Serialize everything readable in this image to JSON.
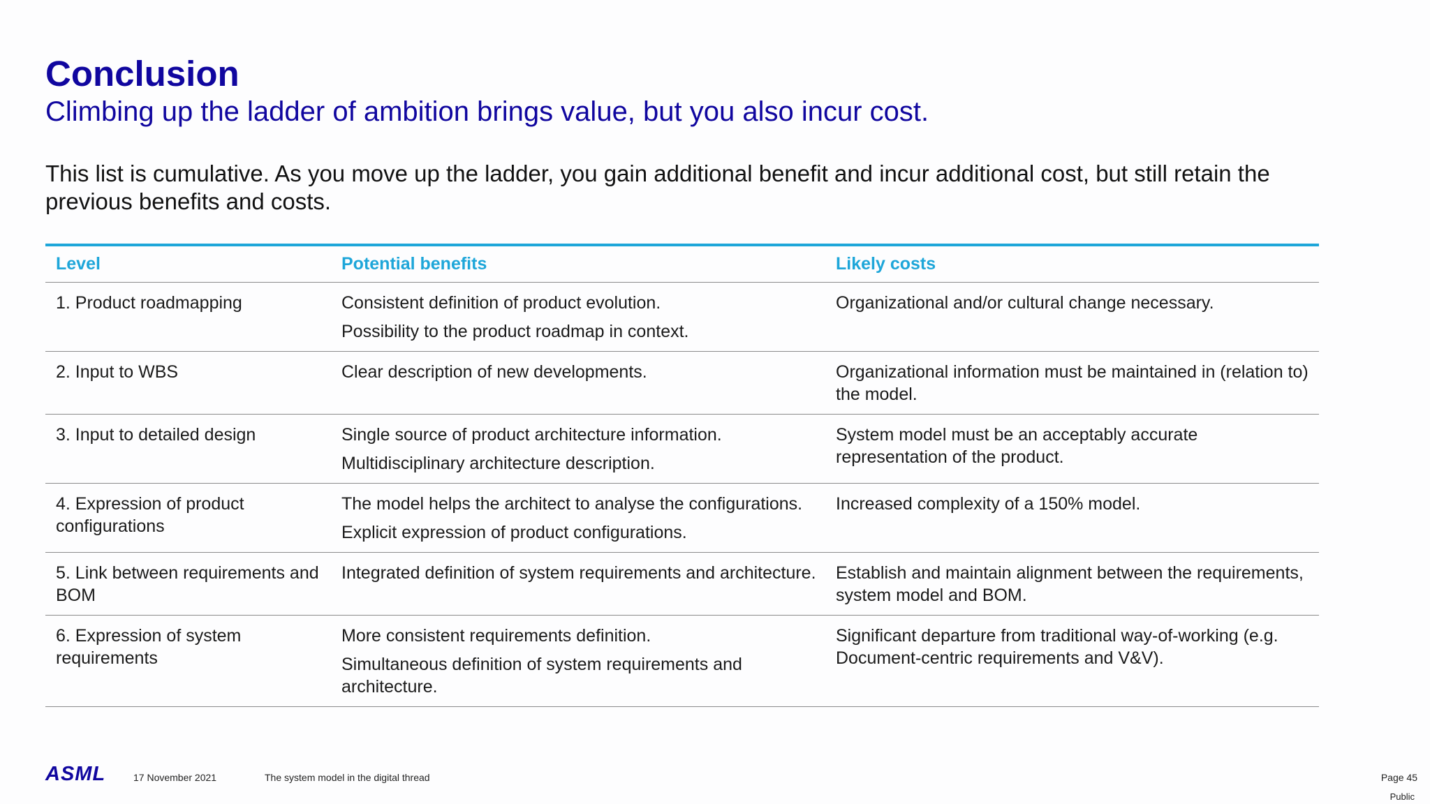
{
  "title": "Conclusion",
  "subtitle": "Climbing up the ladder of ambition brings value, but you also incur cost.",
  "intro": "This list is cumulative. As you move up the ladder, you gain additional benefit and incur additional cost, but still retain the previous benefits and costs.",
  "table": {
    "headers": [
      "Level",
      "Potential benefits",
      "Likely costs"
    ],
    "rows": [
      {
        "level": "1. Product roadmapping",
        "benefits": [
          "Consistent definition of product evolution.",
          "Possibility to the product roadmap in context."
        ],
        "costs": [
          "Organizational and/or cultural change necessary."
        ]
      },
      {
        "level": "2. Input to WBS",
        "benefits": [
          "Clear description of new developments."
        ],
        "costs": [
          "Organizational information must be maintained in (relation to) the model."
        ]
      },
      {
        "level": "3. Input to detailed design",
        "benefits": [
          "Single source of product architecture information.",
          "Multidisciplinary architecture description."
        ],
        "costs": [
          "System model must be an acceptably accurate representation of the product."
        ]
      },
      {
        "level": "4. Expression of product configurations",
        "benefits": [
          "The model helps the architect to analyse the configurations.",
          "Explicit expression of product configurations."
        ],
        "costs": [
          "Increased complexity of a 150% model."
        ]
      },
      {
        "level": "5. Link between requirements and BOM",
        "benefits": [
          "Integrated definition of system requirements and architecture."
        ],
        "costs": [
          "Establish and maintain alignment between the requirements, system model and BOM."
        ]
      },
      {
        "level": "6. Expression of system requirements",
        "benefits": [
          "More consistent requirements definition.",
          "Simultaneous definition of system requirements and architecture."
        ],
        "costs": [
          "Significant departure from traditional way-of-working (e.g. Document-centric requirements and V&V)."
        ]
      }
    ]
  },
  "footer": {
    "logo": "ASML",
    "date": "17 November 2021",
    "doc_title": "The system model in the digital thread",
    "page": "Page 45",
    "classification": "Public"
  },
  "colors": {
    "title": "#10069f",
    "table_header": "#1ea6d9",
    "rule": "#8a8a8a"
  }
}
